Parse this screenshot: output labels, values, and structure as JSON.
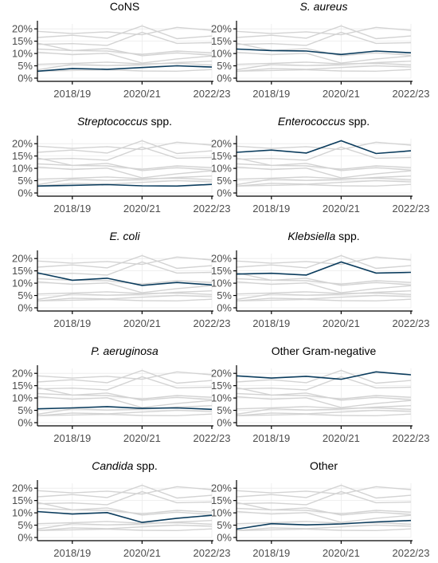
{
  "colors": {
    "highlight": "#0b3c5d",
    "background_series": "#d3d3d3"
  },
  "chart_data": {
    "type": "line",
    "facets": 10,
    "layout": "5 rows x 2 columns, background series in grey, panel series highlighted",
    "x": [
      "2017/18",
      "2018/19",
      "2019/20",
      "2020/21",
      "2021/22",
      "2022/23"
    ],
    "xtick_labels": [
      "2018/19",
      "2020/21",
      "2022/23"
    ],
    "xtick_positions": [
      "2018/19",
      "2020/21",
      "2022/23"
    ],
    "ytick_labels": [
      "0%",
      "5%",
      "10%",
      "15%",
      "20%"
    ],
    "ylim": [
      0,
      22
    ],
    "grid": true,
    "series": [
      {
        "name": "CoNS",
        "italic": false,
        "values": [
          2.8,
          3.9,
          3.6,
          4.3,
          5.0,
          4.5
        ]
      },
      {
        "name": "S. aureus",
        "italic": true,
        "values": [
          11.8,
          11.2,
          11.0,
          9.6,
          11.0,
          10.3
        ]
      },
      {
        "name": "Streptococcus",
        "suffix": " spp.",
        "italic": true,
        "values": [
          2.8,
          3.1,
          3.4,
          2.9,
          2.8,
          3.5
        ]
      },
      {
        "name": "Enterococcus",
        "suffix": " spp.",
        "italic": true,
        "values": [
          16.5,
          17.4,
          16.2,
          21.2,
          16.0,
          17.1
        ]
      },
      {
        "name": "E. coli",
        "italic": true,
        "values": [
          14.2,
          11.2,
          12.0,
          9.1,
          10.3,
          9.3
        ]
      },
      {
        "name": "Klebsiella",
        "suffix": " spp.",
        "italic": true,
        "values": [
          13.7,
          14.0,
          13.3,
          18.6,
          14.1,
          14.4
        ]
      },
      {
        "name": "P. aeruginosa",
        "italic": true,
        "values": [
          5.6,
          6.0,
          6.5,
          5.8,
          6.0,
          5.4
        ]
      },
      {
        "name": "Other Gram-negative",
        "italic": false,
        "values": [
          19.0,
          18.1,
          18.8,
          17.6,
          20.6,
          19.4
        ]
      },
      {
        "name": "Candida",
        "suffix": " spp.",
        "italic": true,
        "values": [
          10.5,
          9.5,
          10.1,
          6.1,
          7.8,
          9.0
        ]
      },
      {
        "name": "Other",
        "italic": false,
        "values": [
          3.4,
          5.6,
          5.1,
          5.5,
          6.3,
          6.9
        ]
      }
    ]
  }
}
